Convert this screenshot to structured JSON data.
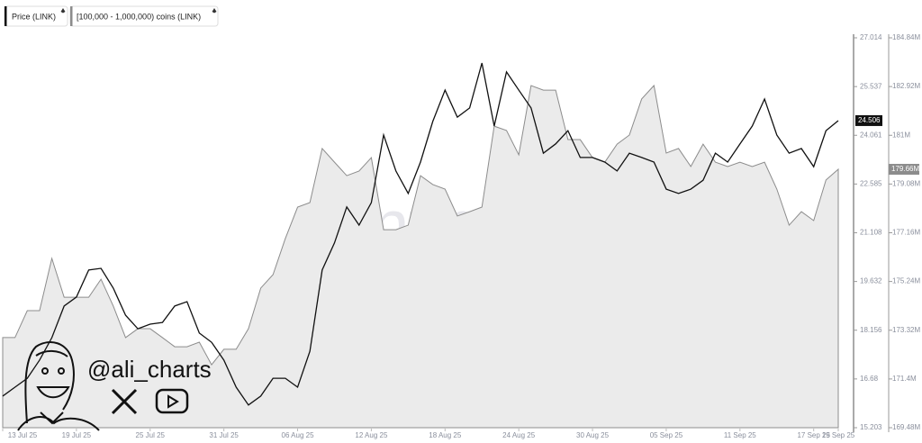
{
  "chart_data": {
    "type": "line-area",
    "watermark": "santiment",
    "handle": "@ali_charts",
    "x": [
      "2025-07-13",
      "2025-07-14",
      "2025-07-15",
      "2025-07-16",
      "2025-07-17",
      "2025-07-18",
      "2025-07-19",
      "2025-07-20",
      "2025-07-21",
      "2025-07-22",
      "2025-07-23",
      "2025-07-24",
      "2025-07-25",
      "2025-07-26",
      "2025-07-27",
      "2025-07-28",
      "2025-07-29",
      "2025-07-30",
      "2025-07-31",
      "2025-08-01",
      "2025-08-02",
      "2025-08-03",
      "2025-08-04",
      "2025-08-05",
      "2025-08-06",
      "2025-08-07",
      "2025-08-08",
      "2025-08-09",
      "2025-08-10",
      "2025-08-11",
      "2025-08-12",
      "2025-08-13",
      "2025-08-14",
      "2025-08-15",
      "2025-08-16",
      "2025-08-17",
      "2025-08-18",
      "2025-08-19",
      "2025-08-20",
      "2025-08-21",
      "2025-08-22",
      "2025-08-23",
      "2025-08-24",
      "2025-08-25",
      "2025-08-26",
      "2025-08-27",
      "2025-08-28",
      "2025-08-29",
      "2025-08-30",
      "2025-08-31",
      "2025-09-01",
      "2025-09-02",
      "2025-09-03",
      "2025-09-04",
      "2025-09-05",
      "2025-09-06",
      "2025-09-07",
      "2025-09-08",
      "2025-09-09",
      "2025-09-10",
      "2025-09-11",
      "2025-09-12",
      "2025-09-13",
      "2025-09-14",
      "2025-09-15",
      "2025-09-16",
      "2025-09-17",
      "2025-09-18",
      "2025-09-19"
    ],
    "xlim": [
      "2025-07-13",
      "2025-09-19"
    ],
    "xticks": [
      {
        "value": "2025-07-13",
        "label": "13 Jul 25"
      },
      {
        "value": "2025-07-19",
        "label": "19 Jul 25"
      },
      {
        "value": "2025-07-25",
        "label": "25 Jul 25"
      },
      {
        "value": "2025-07-31",
        "label": "31 Jul 25"
      },
      {
        "value": "2025-08-06",
        "label": "06 Aug 25"
      },
      {
        "value": "2025-08-12",
        "label": "12 Aug 25"
      },
      {
        "value": "2025-08-18",
        "label": "18 Aug 25"
      },
      {
        "value": "2025-08-24",
        "label": "24 Aug 25"
      },
      {
        "value": "2025-08-30",
        "label": "30 Aug 25"
      },
      {
        "value": "2025-09-05",
        "label": "05 Sep 25"
      },
      {
        "value": "2025-09-11",
        "label": "11 Sep 25"
      },
      {
        "value": "2025-09-17",
        "label": "17 Sep 25"
      },
      {
        "value": "2025-09-19",
        "label": "19 Sep 25"
      }
    ],
    "ylim": [
      15.203,
      27.014
    ],
    "yticks": [
      15.203,
      16.68,
      18.156,
      19.632,
      21.108,
      22.585,
      24.061,
      25.537,
      27.014
    ],
    "y2lim": [
      169480000,
      184840000
    ],
    "y2ticks": [
      {
        "value": 169480000,
        "label": "169.48M"
      },
      {
        "value": 171400000,
        "label": "171.4M"
      },
      {
        "value": 173320000,
        "label": "173.32M"
      },
      {
        "value": 175240000,
        "label": "175.24M"
      },
      {
        "value": 177160000,
        "label": "177.16M"
      },
      {
        "value": 179080000,
        "label": "179.08M"
      },
      {
        "value": 181000000,
        "label": "181M"
      },
      {
        "value": 182920000,
        "label": "182.92M"
      },
      {
        "value": 184840000,
        "label": "184.84M"
      }
    ],
    "series": [
      {
        "name": "Price (LINK)",
        "color": "#111111",
        "mark": "line",
        "values": [
          16.16,
          16.43,
          16.7,
          17.25,
          17.93,
          18.89,
          19.16,
          19.98,
          20.03,
          19.43,
          18.61,
          18.2,
          18.34,
          18.39,
          18.89,
          19.02,
          18.07,
          17.79,
          17.25,
          16.43,
          15.89,
          16.16,
          16.7,
          16.7,
          16.43,
          17.52,
          19.98,
          20.8,
          21.89,
          21.34,
          22.02,
          24.07,
          22.98,
          22.3,
          23.25,
          24.48,
          25.43,
          24.61,
          24.89,
          26.25,
          24.34,
          25.98,
          25.43,
          24.89,
          23.52,
          23.8,
          24.2,
          23.39,
          23.39,
          23.25,
          22.98,
          23.52,
          23.39,
          23.25,
          22.43,
          22.3,
          22.43,
          22.7,
          23.52,
          23.25,
          23.8,
          24.34,
          25.16,
          24.07,
          23.52,
          23.66,
          23.11,
          24.2,
          24.506
        ]
      },
      {
        "name": "[100,000 - 1,000,000) coins (LINK)",
        "color": "#8c8c8c",
        "fill": "#ebebeb",
        "mark": "area",
        "axis": "y2",
        "last_label": "179.66M",
        "values": [
          173030000,
          173030000,
          174090000,
          174090000,
          176150000,
          174620000,
          174620000,
          174620000,
          175330000,
          174270000,
          173030000,
          173380000,
          173380000,
          173030000,
          172670000,
          172670000,
          172850000,
          171960000,
          172570000,
          172570000,
          173380000,
          174980000,
          175510000,
          176930000,
          178170000,
          178350000,
          180480000,
          179940000,
          179410000,
          179590000,
          180120000,
          177280000,
          177280000,
          177460000,
          179410000,
          179060000,
          178880000,
          177820000,
          177990000,
          178170000,
          181360000,
          181190000,
          180230000,
          182960000,
          182780000,
          182780000,
          180830000,
          180830000,
          180120000,
          179940000,
          180650000,
          181010000,
          182430000,
          182960000,
          180300000,
          180480000,
          179770000,
          180650000,
          179940000,
          179770000,
          179940000,
          179770000,
          179940000,
          178880000,
          177460000,
          177990000,
          177640000,
          179240000,
          179660000
        ]
      }
    ]
  }
}
